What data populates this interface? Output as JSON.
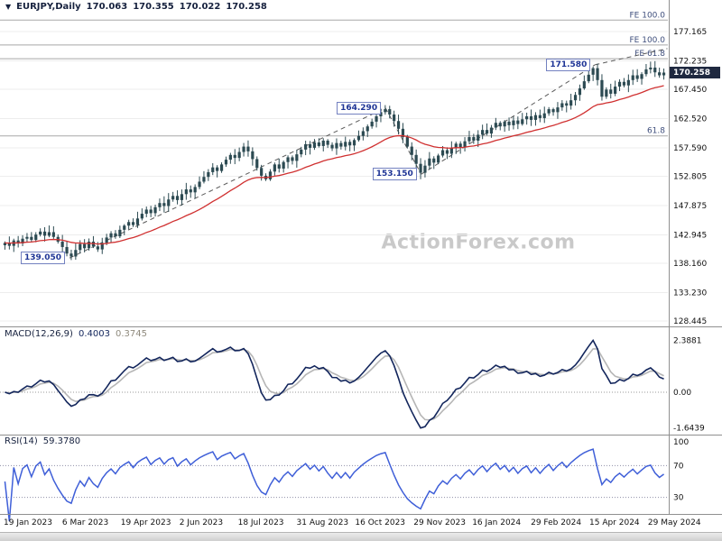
{
  "header": {
    "marker": "▼",
    "symbol": "EURJPY,Daily",
    "open": "170.063",
    "high": "170.355",
    "low": "170.022",
    "close": "170.258"
  },
  "watermark": "ActionForex.com",
  "price_axis": {
    "ticks": [
      "177.165",
      "172.235",
      "167.450",
      "162.520",
      "157.590",
      "152.805",
      "147.875",
      "142.945",
      "138.160",
      "133.230",
      "128.445"
    ],
    "current": "170.258"
  },
  "macd_panel": {
    "title": "MACD(12,26,9)",
    "macd_value": "0.4003",
    "signal_value": "0.3745",
    "axis": [
      "2.3881",
      "0.00",
      "-1.6439"
    ]
  },
  "rsi_panel": {
    "title": "RSI(14)",
    "value": "59.3780",
    "axis": [
      "100",
      "70",
      "30"
    ],
    "levels": [
      70,
      30
    ]
  },
  "x_axis": {
    "labels": [
      "19 Jan 2023",
      "6 Mar 2023",
      "19 Apr 2023",
      "2 Jun 2023",
      "18 Jul 2023",
      "31 Aug 2023",
      "16 Oct 2023",
      "29 Nov 2023",
      "16 Jan 2024",
      "29 Feb 2024",
      "15 Apr 2024",
      "29 May 2024"
    ]
  },
  "colors": {
    "candle": "#2c4a52",
    "ma_line": "#d03030",
    "macd_line": "#13265c",
    "signal_line": "#b6b6b6",
    "rsi_line": "#3f5fd8",
    "grid": "#ededed",
    "fib_line": "#a8a8a8",
    "fib_text": "#3e4e7c",
    "trend_line": "#5a5a5a",
    "separator": "#909090",
    "axis_text": "#101010",
    "dotted_level": "#8e8ea8"
  },
  "chart_data": {
    "type": "candlestick",
    "symbol": "EURJPY",
    "timeframe": "Daily",
    "title": "EURJPY Daily with MACD(12,26,9) and RSI(14)",
    "ohlc_current": {
      "open": 170.063,
      "high": 170.355,
      "low": 170.022,
      "close": 170.258
    },
    "ylim": [
      127.3,
      180.9
    ],
    "y_tick_values": [
      177.165,
      172.235,
      167.45,
      162.52,
      157.59,
      152.805,
      147.875,
      142.945,
      138.16,
      133.23,
      128.445
    ],
    "x_range": [
      "19 Jan 2023",
      "29 May 2024"
    ],
    "closes": [
      141.6,
      141.1,
      142.0,
      141.5,
      142.3,
      142.6,
      142.1,
      143.0,
      143.5,
      142.8,
      143.4,
      142.6,
      141.8,
      140.9,
      139.8,
      139.3,
      140.4,
      141.4,
      140.7,
      141.8,
      141.0,
      140.5,
      141.6,
      142.5,
      143.2,
      142.7,
      143.8,
      144.5,
      145.1,
      144.6,
      145.7,
      146.5,
      147.2,
      146.6,
      147.6,
      148.3,
      147.8,
      148.9,
      149.5,
      148.8,
      149.8,
      150.6,
      150.1,
      151.0,
      151.9,
      152.7,
      153.5,
      154.3,
      153.7,
      154.8,
      155.6,
      156.4,
      155.9,
      156.9,
      157.8,
      157.0,
      155.7,
      154.2,
      152.9,
      152.3,
      153.6,
      154.8,
      154.1,
      155.2,
      156.0,
      155.4,
      156.5,
      157.3,
      158.2,
      157.6,
      158.5,
      157.9,
      158.8,
      158.1,
      157.5,
      158.4,
      157.8,
      158.6,
      158.0,
      158.9,
      159.6,
      160.4,
      161.2,
      162.0,
      162.9,
      163.6,
      164.1,
      163.2,
      162.1,
      160.8,
      159.4,
      157.8,
      156.4,
      154.9,
      153.4,
      154.6,
      155.8,
      155.1,
      156.3,
      157.2,
      156.6,
      157.6,
      158.3,
      157.7,
      158.7,
      159.4,
      158.8,
      159.8,
      160.6,
      160.0,
      161.0,
      161.8,
      161.2,
      162.0,
      161.4,
      162.2,
      161.6,
      162.4,
      162.9,
      162.3,
      163.1,
      162.6,
      163.4,
      164.1,
      163.6,
      164.4,
      165.1,
      164.7,
      165.6,
      166.5,
      167.6,
      168.8,
      169.9,
      171.0,
      169.0,
      166.2,
      167.4,
      166.7,
      167.9,
      168.7,
      168.1,
      169.0,
      169.8,
      169.2,
      170.0,
      170.8,
      171.1,
      170.3,
      169.8,
      170.26
    ],
    "fib_levels": [
      {
        "label": "FE 100.0",
        "price": 179.1
      },
      {
        "label": "FE 100.0",
        "price": 174.9
      },
      {
        "label": "FE 61.8",
        "price": 172.6
      },
      {
        "label": "61.8",
        "price": 159.6
      }
    ],
    "annotations": [
      {
        "label": "139.050",
        "t": 0.1007,
        "price": 139.05
      },
      {
        "label": "164.290",
        "t": 0.577,
        "price": 164.29
      },
      {
        "label": "153.150",
        "t": 0.631,
        "price": 153.15
      },
      {
        "label": "171.580",
        "t": 0.893,
        "price": 171.58
      }
    ],
    "trendlines": [
      {
        "x1": 0.1007,
        "p1": 139.05,
        "x2": 0.577,
        "p2": 164.3
      },
      {
        "x1": 0.577,
        "p1": 164.3,
        "x2": 0.631,
        "p2": 153.15
      },
      {
        "x1": 0.631,
        "p1": 153.15,
        "x2": 0.893,
        "p2": 171.58
      },
      {
        "x1": 0.893,
        "p1": 171.58,
        "x2": 1.002,
        "p2": 174.3
      }
    ],
    "macd_axis_max": 2.3881,
    "macd_axis_min": -1.6439,
    "rsi_levels": [
      70,
      30
    ]
  }
}
